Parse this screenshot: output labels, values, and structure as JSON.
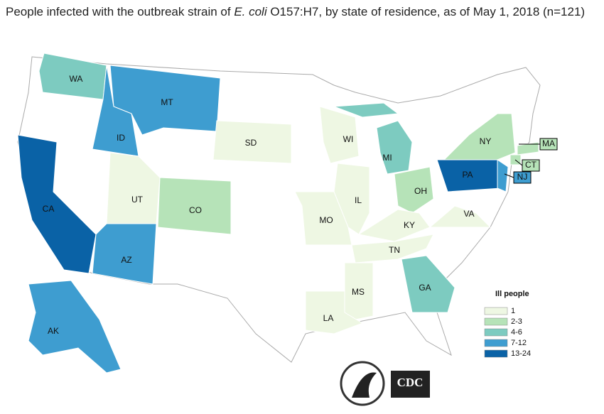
{
  "header": {
    "title": [
      "People infected with the outbreak strain of ",
      "E. coli",
      " O157:H7, by state of residence, as of May 1, 2018 (n=121)"
    ]
  },
  "legend": {
    "title": "Ill people",
    "bins": [
      {
        "label": "1",
        "color": "#eef7e3"
      },
      {
        "label": "2-3",
        "color": "#b6e3b8"
      },
      {
        "label": "4-6",
        "color": "#7dcbc0"
      },
      {
        "label": "7-12",
        "color": "#3e9dd0"
      },
      {
        "label": "13-24",
        "color": "#0a62a6"
      }
    ]
  },
  "states": [
    {
      "label": "WA",
      "bin": 2
    },
    {
      "label": "MT",
      "bin": 3
    },
    {
      "label": "ID",
      "bin": 3
    },
    {
      "label": "SD",
      "bin": 0
    },
    {
      "label": "WI",
      "bin": 0
    },
    {
      "label": "NY",
      "bin": 1
    },
    {
      "label": "MI",
      "bin": 2
    },
    {
      "label": "MA",
      "bin": 1
    },
    {
      "label": "CT",
      "bin": 1
    },
    {
      "label": "PA",
      "bin": 4
    },
    {
      "label": "NJ",
      "bin": 3
    },
    {
      "label": "UT",
      "bin": 0
    },
    {
      "label": "CO",
      "bin": 1
    },
    {
      "label": "OH",
      "bin": 1
    },
    {
      "label": "CA",
      "bin": 4
    },
    {
      "label": "IL",
      "bin": 0
    },
    {
      "label": "MO",
      "bin": 0
    },
    {
      "label": "KY",
      "bin": 0
    },
    {
      "label": "VA",
      "bin": 0
    },
    {
      "label": "TN",
      "bin": 0
    },
    {
      "label": "AZ",
      "bin": 3
    },
    {
      "label": "MS",
      "bin": 0
    },
    {
      "label": "GA",
      "bin": 2
    },
    {
      "label": "LA",
      "bin": 0
    },
    {
      "label": "AK",
      "bin": 3
    }
  ],
  "logos": {
    "cdc": "CDC"
  }
}
